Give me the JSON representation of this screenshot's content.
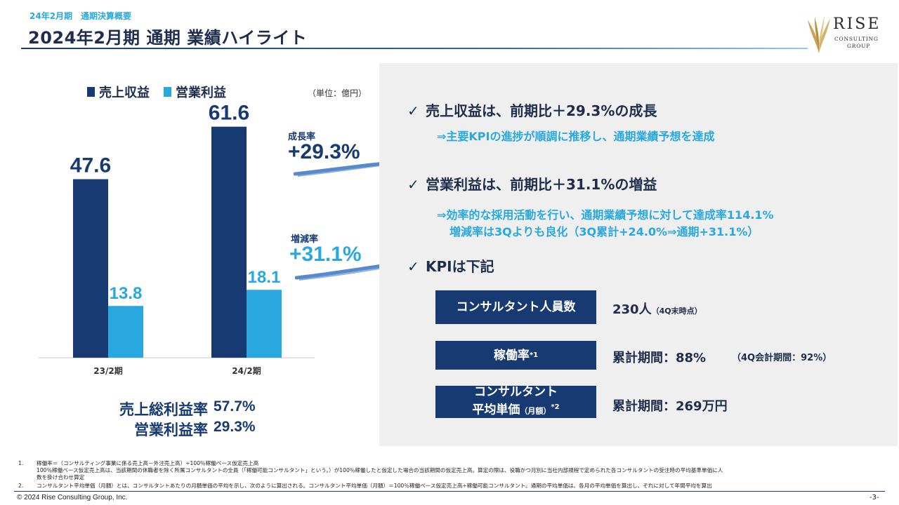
{
  "header": {
    "subtitle": "24年2月期　通期決算概要",
    "title": "2024年2月期  通期  業績ハイライト"
  },
  "logo": {
    "word": "RISE",
    "line1": "CONSULTING",
    "line2": "GROUP"
  },
  "colors": {
    "navy": "#183a72",
    "sky": "#29a8e0",
    "panel": "#efefef"
  },
  "chart_data": {
    "type": "bar",
    "categories": [
      "23/2期",
      "24/2期"
    ],
    "series": [
      {
        "name": "売上収益",
        "values": [
          47.6,
          61.6
        ],
        "color": "#183a72"
      },
      {
        "name": "営業利益",
        "values": [
          13.8,
          18.1
        ],
        "color": "#29a8e0"
      }
    ],
    "data_labels": [
      [
        "47.6",
        "61.6"
      ],
      [
        "13.8",
        "18.1"
      ]
    ],
    "unit": "（単位：億円）",
    "ylim": [
      0,
      72
    ]
  },
  "growth": {
    "revenue_label": "成長率",
    "revenue_value": "+29.3%",
    "profit_label": "増減率",
    "profit_value": "+31.1%"
  },
  "ratios": [
    {
      "label": "売上総利益率",
      "value": "57.7%"
    },
    {
      "label": "営業利益率",
      "value": "29.3%"
    }
  ],
  "panel": {
    "point1": "売上収益は、前期比＋29.3%の成長",
    "point1_sub": "⇒主要KPIの進捗が順調に推移し、通期業績予想を達成",
    "point2": "営業利益は、前期比＋31.1%の増益",
    "point2_sub1": "⇒効率的な採用活動を行い、通期業績予想に対して達成率114.1%",
    "point2_sub2": "増減率は3Qよりも良化（3Q累計+24.0%⇒通期+31.1%）",
    "point3": "KPIは下記",
    "check": "✓"
  },
  "kpis": {
    "k1_label": "コンサルタント人員数",
    "k1_value": "230人",
    "k1_note": "（4Q末時点）",
    "k2_label": "稼働率",
    "k2_sup": "*1",
    "k2_value": "累計期間：88%",
    "k2_note": "（4Q会計期間：92%）",
    "k3_label1": "コンサルタント",
    "k3_label2": "平均単価",
    "k3_small": "（月額）",
    "k3_sup": "*2",
    "k3_value": "累計期間：269万円"
  },
  "footnotes": {
    "n1": "1.",
    "f1a": "稼働率＝（コンサルティング事業に係る売上高－外注売上高）÷100％稼働ベース仮定売上高",
    "f1b": "100％稼働ベース仮定売上高は、当該期間の休職者を除く所属コンサルタントの全員（「稼働可能コンサルタント」という。）が100％稼働したと仮定した場合の当該期間の仮定売上高。算定の際は、役職かつ月別に当社内部規程で定められた各コンサルタントの受注時の平均基準単価に人",
    "f1c": "数を掛け合わせ算定",
    "n2": "2.",
    "f2": "コンサルタント平均単価（月額）とは、コンサルタントあたりの月額単価の平均を示し、次のように算出される。コンサルタント平均単価（月額）＝100％稼働ベース仮定売上高÷稼働可能コンサルタント。通期の平均単価は、各月の平均単価を算出し、それに対して年間平均を算出"
  },
  "footer": {
    "copyright": "© 2024 Rise Consulting Group, Inc.",
    "page": "-3-"
  }
}
